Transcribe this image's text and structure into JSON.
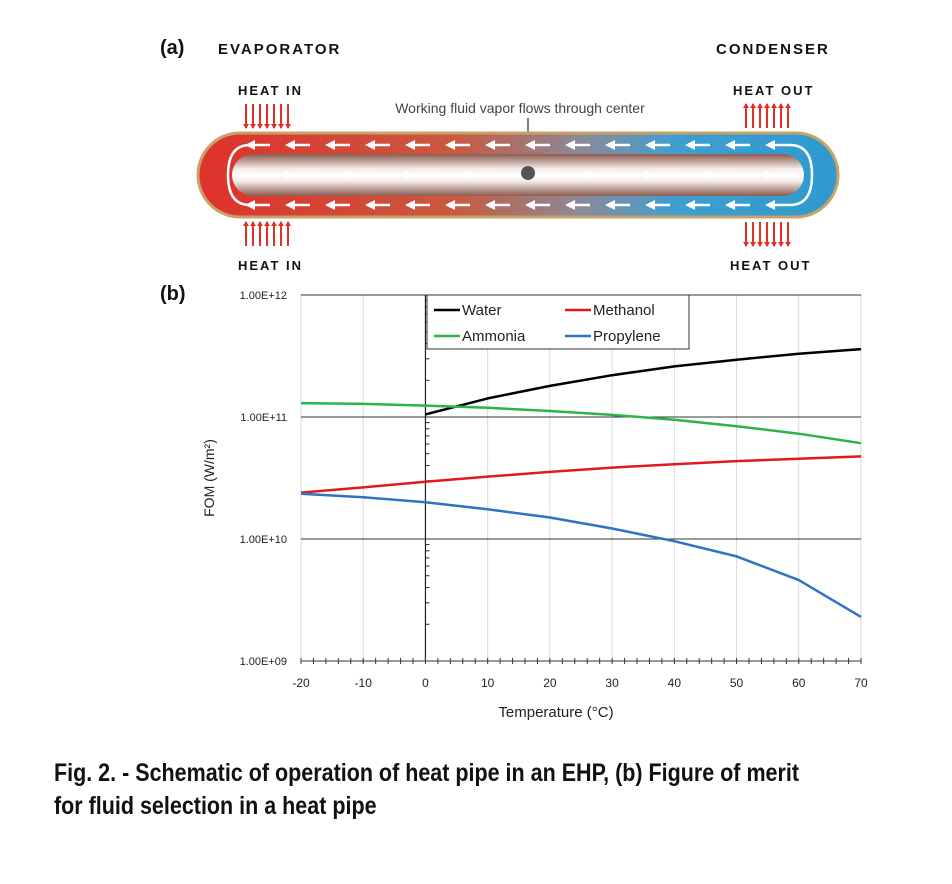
{
  "panel_a": {
    "label": "(a)",
    "evaporator_label": "EVAPORATOR",
    "condenser_label": "CONDENSER",
    "heat_in_top": "HEAT IN",
    "heat_in_bottom": "HEAT IN",
    "heat_out_top": "HEAT OUT",
    "heat_out_bottom": "HEAT OUT",
    "flow_annotation": "Working fluid vapor flows through center",
    "colors": {
      "hot": "#e0312b",
      "cold": "#2e9ad0",
      "arrow": "#e0312b"
    }
  },
  "panel_b": {
    "label": "(b)"
  },
  "chart_data": {
    "type": "line",
    "xlabel": "Temperature (°C)",
    "ylabel": "FOM (W/m²)",
    "x_ticks": [
      "-20",
      "-10",
      "0",
      "10",
      "20",
      "30",
      "40",
      "50",
      "60",
      "70"
    ],
    "y_ticks": [
      "1.00E+09",
      "1.00E+10",
      "1.00E+11",
      "1.00E+12"
    ],
    "xlim": [
      -20,
      70
    ],
    "ylim": [
      1000000000,
      1000000000000
    ],
    "y_scale": "log",
    "grid": true,
    "legend_position": "top-center",
    "series": [
      {
        "name": "Water",
        "color": "#000000",
        "points": [
          [
            0,
            105000000000.0
          ],
          [
            10,
            142000000000.0
          ],
          [
            20,
            180000000000.0
          ],
          [
            30,
            220000000000.0
          ],
          [
            40,
            260000000000.0
          ],
          [
            50,
            295000000000.0
          ],
          [
            60,
            330000000000.0
          ],
          [
            70,
            360000000000.0
          ]
        ]
      },
      {
        "name": "Methanol",
        "color": "#e31a1c",
        "points": [
          [
            -20,
            24000000000.0
          ],
          [
            -10,
            26500000000.0
          ],
          [
            0,
            29500000000.0
          ],
          [
            10,
            32500000000.0
          ],
          [
            20,
            35500000000.0
          ],
          [
            30,
            38500000000.0
          ],
          [
            40,
            41000000000.0
          ],
          [
            50,
            43500000000.0
          ],
          [
            60,
            45500000000.0
          ],
          [
            70,
            47500000000.0
          ]
        ]
      },
      {
        "name": "Ammonia",
        "color": "#2eb24a",
        "points": [
          [
            -20,
            130000000000.0
          ],
          [
            -10,
            128000000000.0
          ],
          [
            0,
            124000000000.0
          ],
          [
            10,
            119000000000.0
          ],
          [
            20,
            112000000000.0
          ],
          [
            30,
            104000000000.0
          ],
          [
            40,
            95000000000.0
          ],
          [
            50,
            84000000000.0
          ],
          [
            60,
            73000000000.0
          ],
          [
            70,
            61000000000.0
          ]
        ]
      },
      {
        "name": "Propylene",
        "color": "#2f73c4",
        "points": [
          [
            -20,
            23500000000.0
          ],
          [
            -10,
            22000000000.0
          ],
          [
            0,
            20000000000.0
          ],
          [
            10,
            17500000000.0
          ],
          [
            20,
            15000000000.0
          ],
          [
            30,
            12200000000.0
          ],
          [
            40,
            9600000000.0
          ],
          [
            50,
            7200000000.0
          ],
          [
            60,
            4600000000.0
          ],
          [
            70,
            2300000000.0
          ]
        ]
      }
    ]
  },
  "caption": "Fig. 2. - Schematic of operation of heat pipe in an EHP, (b) Figure of merit for fluid selection in a heat pipe"
}
